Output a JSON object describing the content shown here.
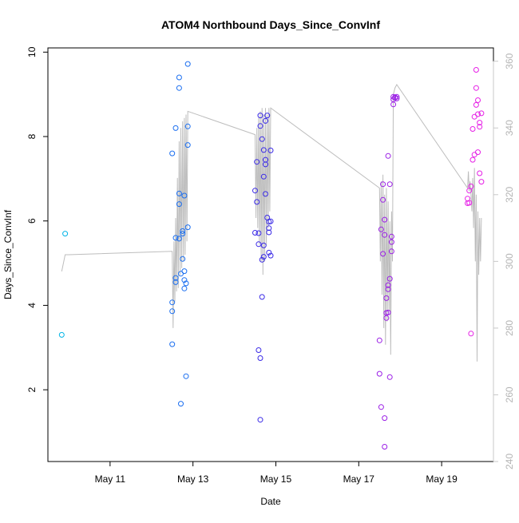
{
  "chart_data": {
    "type": "scatter",
    "title": "ATOM4 Northbound Days_Since_ConvInf",
    "xlabel": "Date",
    "ylabel": "Days_Since_ConvInf",
    "xlim": [
      "2023-05-09 12:00",
      "2023-05-20 06:00"
    ],
    "ylim": [
      0.3,
      10.1
    ],
    "y2lim": [
      240,
      364
    ],
    "x_ticks": [
      {
        "value": "2023-05-11",
        "label": "May 11"
      },
      {
        "value": "2023-05-13",
        "label": "May 13"
      },
      {
        "value": "2023-05-15",
        "label": "May 15"
      },
      {
        "value": "2023-05-17",
        "label": "May 17"
      },
      {
        "value": "2023-05-19",
        "label": "May 19"
      }
    ],
    "y_ticks": [
      2,
      4,
      6,
      8,
      10
    ],
    "y2_ticks": [
      240,
      260,
      280,
      300,
      320,
      340,
      360
    ],
    "grid": false,
    "series": [
      {
        "color": "#00b4e6",
        "points": [
          [
            "2023-05-09 20:00",
            3.3
          ],
          [
            "2023-05-09 22:00",
            5.7
          ]
        ]
      },
      {
        "color": "#1a6ef0",
        "points": [
          [
            "2023-05-12 12:00",
            3.08
          ],
          [
            "2023-05-12 12:00",
            3.86
          ],
          [
            "2023-05-12 12:00",
            4.07
          ],
          [
            "2023-05-12 12:00",
            7.6
          ],
          [
            "2023-05-12 14:00",
            4.65
          ],
          [
            "2023-05-12 14:00",
            4.55
          ],
          [
            "2023-05-12 14:00",
            5.6
          ],
          [
            "2023-05-12 14:00",
            8.2
          ],
          [
            "2023-05-12 16:00",
            5.58
          ],
          [
            "2023-05-12 16:00",
            6.65
          ],
          [
            "2023-05-12 16:00",
            6.4
          ],
          [
            "2023-05-12 16:00",
            9.4
          ],
          [
            "2023-05-12 16:00",
            9.15
          ],
          [
            "2023-05-12 17:00",
            4.75
          ],
          [
            "2023-05-12 17:00",
            1.67
          ],
          [
            "2023-05-12 18:00",
            5.7
          ],
          [
            "2023-05-12 18:00",
            5.76
          ],
          [
            "2023-05-12 18:00",
            5.1
          ],
          [
            "2023-05-12 19:00",
            4.4
          ],
          [
            "2023-05-12 19:00",
            4.81
          ],
          [
            "2023-05-12 19:00",
            4.6
          ],
          [
            "2023-05-12 19:00",
            6.6
          ],
          [
            "2023-05-12 20:00",
            2.32
          ],
          [
            "2023-05-12 20:00",
            4.52
          ],
          [
            "2023-05-12 21:00",
            5.85
          ],
          [
            "2023-05-12 21:00",
            7.8
          ],
          [
            "2023-05-12 21:00",
            8.24
          ],
          [
            "2023-05-12 21:00",
            9.72
          ]
        ]
      },
      {
        "color": "#3a2ae6",
        "points": [
          [
            "2023-05-14 12:00",
            5.72
          ],
          [
            "2023-05-14 12:00",
            6.72
          ],
          [
            "2023-05-14 13:00",
            7.4
          ],
          [
            "2023-05-14 13:00",
            6.45
          ],
          [
            "2023-05-14 14:00",
            5.71
          ],
          [
            "2023-05-14 14:00",
            5.45
          ],
          [
            "2023-05-14 14:00",
            2.94
          ],
          [
            "2023-05-14 15:00",
            2.75
          ],
          [
            "2023-05-14 15:00",
            1.29
          ],
          [
            "2023-05-14 15:00",
            8.25
          ],
          [
            "2023-05-14 15:00",
            8.5
          ],
          [
            "2023-05-14 16:00",
            4.2
          ],
          [
            "2023-05-14 16:00",
            7.94
          ],
          [
            "2023-05-14 16:00",
            5.08
          ],
          [
            "2023-05-14 17:00",
            5.42
          ],
          [
            "2023-05-14 17:00",
            5.15
          ],
          [
            "2023-05-14 17:00",
            7.68
          ],
          [
            "2023-05-14 17:00",
            7.05
          ],
          [
            "2023-05-14 18:00",
            8.37
          ],
          [
            "2023-05-14 18:00",
            7.45
          ],
          [
            "2023-05-14 18:00",
            6.64
          ],
          [
            "2023-05-14 18:00",
            7.34
          ],
          [
            "2023-05-14 19:00",
            8.5
          ],
          [
            "2023-05-14 19:00",
            6.08
          ],
          [
            "2023-05-14 20:00",
            5.25
          ],
          [
            "2023-05-14 20:00",
            5.73
          ],
          [
            "2023-05-14 20:00",
            5.83
          ],
          [
            "2023-05-14 20:00",
            5.98
          ],
          [
            "2023-05-14 21:00",
            5.18
          ],
          [
            "2023-05-14 21:00",
            7.67
          ],
          [
            "2023-05-14 21:00",
            5.99
          ]
        ]
      },
      {
        "color": "#9b1fe6",
        "points": [
          [
            "2023-05-17 12:00",
            3.17
          ],
          [
            "2023-05-17 12:00",
            2.38
          ],
          [
            "2023-05-17 13:00",
            1.59
          ],
          [
            "2023-05-17 13:00",
            5.8
          ],
          [
            "2023-05-17 14:00",
            6.5
          ],
          [
            "2023-05-17 14:00",
            5.22
          ],
          [
            "2023-05-17 14:00",
            6.87
          ],
          [
            "2023-05-17 15:00",
            6.03
          ],
          [
            "2023-05-17 15:00",
            5.67
          ],
          [
            "2023-05-17 15:00",
            0.65
          ],
          [
            "2023-05-17 15:00",
            1.33
          ],
          [
            "2023-05-17 16:00",
            3.7
          ],
          [
            "2023-05-17 16:00",
            3.82
          ],
          [
            "2023-05-17 16:00",
            4.17
          ],
          [
            "2023-05-17 17:00",
            3.83
          ],
          [
            "2023-05-17 17:00",
            4.38
          ],
          [
            "2023-05-17 17:00",
            4.48
          ],
          [
            "2023-05-17 17:00",
            7.54
          ],
          [
            "2023-05-17 18:00",
            2.3
          ],
          [
            "2023-05-17 18:00",
            4.63
          ],
          [
            "2023-05-17 18:00",
            6.87
          ],
          [
            "2023-05-17 19:00",
            5.28
          ],
          [
            "2023-05-17 19:00",
            5.5
          ],
          [
            "2023-05-17 19:00",
            5.63
          ],
          [
            "2023-05-17 20:00",
            8.94
          ],
          [
            "2023-05-17 20:00",
            8.76
          ],
          [
            "2023-05-17 20:00",
            8.88
          ],
          [
            "2023-05-17 21:00",
            8.92
          ],
          [
            "2023-05-17 21:00",
            8.93
          ],
          [
            "2023-05-17 22:00",
            8.94
          ],
          [
            "2023-05-17 22:00",
            8.9
          ]
        ]
      },
      {
        "color": "#e61fe6",
        "points": [
          [
            "2023-05-19 15:00",
            6.42
          ],
          [
            "2023-05-19 15:00",
            6.53
          ],
          [
            "2023-05-19 16:00",
            6.72
          ],
          [
            "2023-05-19 16:00",
            6.43
          ],
          [
            "2023-05-19 17:00",
            6.82
          ],
          [
            "2023-05-19 17:00",
            3.33
          ],
          [
            "2023-05-19 18:00",
            7.45
          ],
          [
            "2023-05-19 18:00",
            8.18
          ],
          [
            "2023-05-19 19:00",
            7.57
          ],
          [
            "2023-05-19 19:00",
            8.47
          ],
          [
            "2023-05-19 20:00",
            9.15
          ],
          [
            "2023-05-19 20:00",
            8.75
          ],
          [
            "2023-05-19 20:00",
            9.58
          ],
          [
            "2023-05-19 21:00",
            8.86
          ],
          [
            "2023-05-19 21:00",
            8.53
          ],
          [
            "2023-05-19 21:00",
            7.63
          ],
          [
            "2023-05-19 22:00",
            8.33
          ],
          [
            "2023-05-19 22:00",
            8.23
          ],
          [
            "2023-05-19 22:00",
            7.13
          ],
          [
            "2023-05-19 23:00",
            8.55
          ],
          [
            "2023-05-19 23:00",
            6.93
          ]
        ]
      }
    ],
    "secondary_line": {
      "axis": "right",
      "color": "#bdbdbd",
      "points": [
        [
          "2023-05-09 20:00",
          297
        ],
        [
          "2023-05-09 22:00",
          302
        ],
        [
          "2023-05-10 00:00",
          302
        ],
        [
          "2023-05-12 12:00",
          303
        ],
        [
          "2023-05-12 12:30",
          280
        ],
        [
          "2023-05-12 13:00",
          306
        ],
        [
          "2023-05-12 13:30",
          288
        ],
        [
          "2023-05-12 14:00",
          313
        ],
        [
          "2023-05-12 14:30",
          291
        ],
        [
          "2023-05-12 15:00",
          325
        ],
        [
          "2023-05-12 15:30",
          292
        ],
        [
          "2023-05-12 16:00",
          336
        ],
        [
          "2023-05-12 16:30",
          296
        ],
        [
          "2023-05-12 17:00",
          340
        ],
        [
          "2023-05-12 17:30",
          298
        ],
        [
          "2023-05-12 18:00",
          342
        ],
        [
          "2023-05-12 18:30",
          300
        ],
        [
          "2023-05-12 19:00",
          343
        ],
        [
          "2023-05-12 19:30",
          302
        ],
        [
          "2023-05-12 20:00",
          344
        ],
        [
          "2023-05-12 20:30",
          306
        ],
        [
          "2023-05-12 21:00",
          345
        ],
        [
          "2023-05-14 12:00",
          338
        ],
        [
          "2023-05-14 12:30",
          313
        ],
        [
          "2023-05-14 13:00",
          340
        ],
        [
          "2023-05-14 13:30",
          310
        ],
        [
          "2023-05-14 14:00",
          343
        ],
        [
          "2023-05-14 14:30",
          305
        ],
        [
          "2023-05-14 15:00",
          345
        ],
        [
          "2023-05-14 15:30",
          300
        ],
        [
          "2023-05-14 16:00",
          346
        ],
        [
          "2023-05-14 16:30",
          296
        ],
        [
          "2023-05-14 17:00",
          344
        ],
        [
          "2023-05-14 17:30",
          300
        ],
        [
          "2023-05-14 18:00",
          346
        ],
        [
          "2023-05-14 18:30",
          305
        ],
        [
          "2023-05-14 19:00",
          344
        ],
        [
          "2023-05-14 19:30",
          310
        ],
        [
          "2023-05-14 20:00",
          346
        ],
        [
          "2023-05-14 20:30",
          315
        ],
        [
          "2023-05-14 21:00",
          346
        ],
        [
          "2023-05-17 12:00",
          322
        ],
        [
          "2023-05-17 12:30",
          300
        ],
        [
          "2023-05-17 13:00",
          324
        ],
        [
          "2023-05-17 13:30",
          290
        ],
        [
          "2023-05-17 14:00",
          326
        ],
        [
          "2023-05-17 14:30",
          280
        ],
        [
          "2023-05-17 15:00",
          320
        ],
        [
          "2023-05-17 15:30",
          275
        ],
        [
          "2023-05-17 16:00",
          322
        ],
        [
          "2023-05-17 16:30",
          282
        ],
        [
          "2023-05-17 17:00",
          318
        ],
        [
          "2023-05-17 17:30",
          285
        ],
        [
          "2023-05-17 18:00",
          312
        ],
        [
          "2023-05-17 18:30",
          272
        ],
        [
          "2023-05-17 19:00",
          315
        ],
        [
          "2023-05-17 19:30",
          300
        ],
        [
          "2023-05-17 20:00",
          350
        ],
        [
          "2023-05-17 21:00",
          352
        ],
        [
          "2023-05-17 22:00",
          353
        ],
        [
          "2023-05-19 15:00",
          322
        ],
        [
          "2023-05-19 15:30",
          327
        ],
        [
          "2023-05-19 16:00",
          321
        ],
        [
          "2023-05-19 16:30",
          324
        ],
        [
          "2023-05-19 17:00",
          320
        ],
        [
          "2023-05-19 17:30",
          315
        ],
        [
          "2023-05-19 18:00",
          325
        ],
        [
          "2023-05-19 18:30",
          310
        ],
        [
          "2023-05-19 19:00",
          328
        ],
        [
          "2023-05-19 19:30",
          300
        ],
        [
          "2023-05-19 20:00",
          320
        ],
        [
          "2023-05-19 20:30",
          270
        ],
        [
          "2023-05-19 21:00",
          315
        ],
        [
          "2023-05-19 21:30",
          296
        ],
        [
          "2023-05-19 22:00",
          313
        ],
        [
          "2023-05-19 22:30",
          300
        ],
        [
          "2023-05-19 23:00",
          313
        ]
      ]
    }
  }
}
